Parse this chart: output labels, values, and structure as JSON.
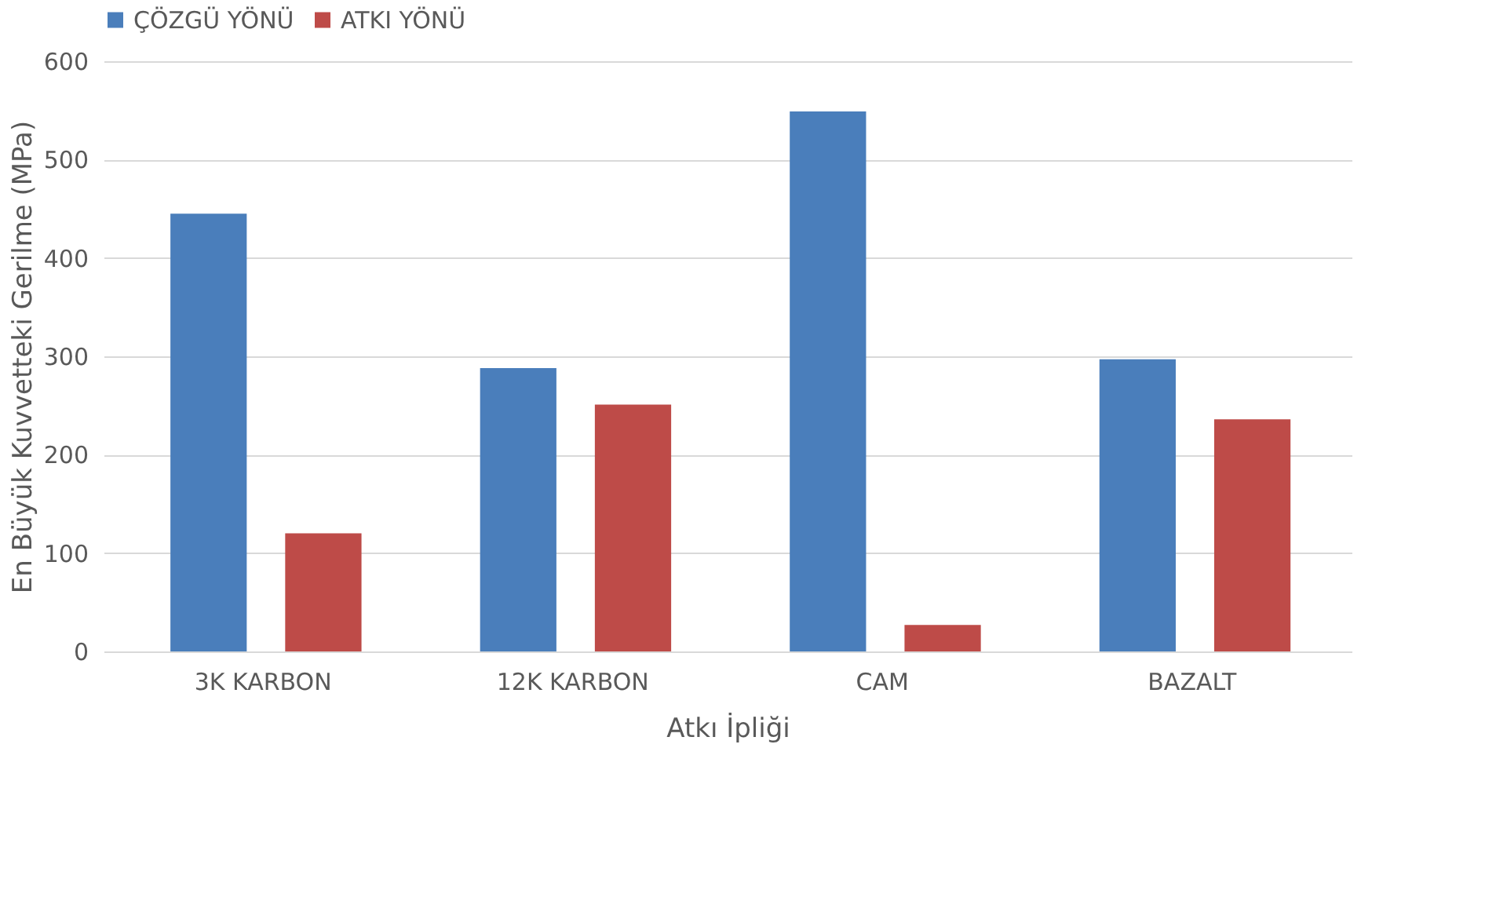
{
  "chart_data": {
    "type": "bar",
    "xlabel": "Atkı İpliği",
    "ylabel": "En Büyük Kuvvetteki Gerilme (MPa)",
    "categories": [
      "3K KARBON",
      "12K KARBON",
      "CAM",
      "BAZALT"
    ],
    "series": [
      {
        "name": "ÇÖZGÜ YÖNÜ",
        "color": "#4a7ebb",
        "values": [
          445,
          288,
          549,
          297
        ]
      },
      {
        "name": "ATKI YÖNÜ",
        "color": "#be4b48",
        "values": [
          120,
          251,
          27,
          236
        ]
      }
    ],
    "ylim": [
      0,
      600
    ],
    "yticks": [
      0,
      100,
      200,
      300,
      400,
      500,
      600
    ],
    "grid": "y",
    "legend": "top"
  }
}
